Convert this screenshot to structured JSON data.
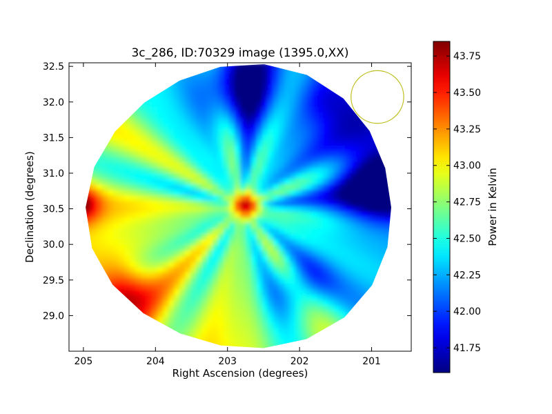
{
  "chart_data": {
    "type": "heatmap",
    "title": "3c_286, ID:70329 image (1395.0,XX)",
    "xlabel": "Right Ascension (degrees)",
    "ylabel": "Declination (degrees)",
    "xlim": [
      205.2,
      200.45
    ],
    "ylim": [
      28.5,
      32.55
    ],
    "x_ticks": [
      205,
      204,
      203,
      202,
      201
    ],
    "x_tick_labels": [
      "205",
      "204",
      "203",
      "202",
      "201"
    ],
    "y_ticks": [
      29.0,
      29.5,
      30.0,
      30.5,
      31.0,
      31.5,
      32.0,
      32.5
    ],
    "y_tick_labels": [
      "29.0",
      "29.5",
      "30.0",
      "30.5",
      "31.0",
      "31.5",
      "32.0",
      "32.5"
    ],
    "grid": false,
    "colorbar": {
      "label": "Power in Kelvin",
      "range": [
        41.58,
        43.85
      ],
      "ticks": [
        41.75,
        42.0,
        42.25,
        42.5,
        42.75,
        43.0,
        43.25,
        43.5,
        43.75
      ],
      "tick_labels": [
        "41.75",
        "42.00",
        "42.25",
        "42.50",
        "42.75",
        "43.00",
        "43.25",
        "43.50",
        "43.75"
      ],
      "colormap": "jet"
    },
    "map_center": {
      "ra": 202.8,
      "dec": 30.52
    },
    "map_radius_deg": 2.1,
    "background_level": 42.55,
    "sources": [
      {
        "ra": 202.75,
        "dec": 30.55,
        "peak": 43.75,
        "sigma": 0.13
      },
      {
        "ra": 205.05,
        "dec": 30.57,
        "peak": 43.3,
        "sigma": 0.18
      },
      {
        "ra": 204.5,
        "dec": 29.35,
        "peak": 43.2,
        "sigma": 0.28
      },
      {
        "ra": 200.85,
        "dec": 30.95,
        "peak": 41.6,
        "sigma": 0.45
      },
      {
        "ra": 202.9,
        "dec": 32.2,
        "peak": 41.85,
        "sigma": 0.4
      },
      {
        "ra": 201.6,
        "dec": 32.0,
        "peak": 42.3,
        "sigma": 0.25
      },
      {
        "ra": 202.0,
        "dec": 29.4,
        "peak": 42.05,
        "sigma": 0.3
      }
    ],
    "beam_circle": {
      "ra": 200.92,
      "dec": 32.07,
      "radius_deg": 0.37,
      "color": "#bfbf1f"
    }
  }
}
